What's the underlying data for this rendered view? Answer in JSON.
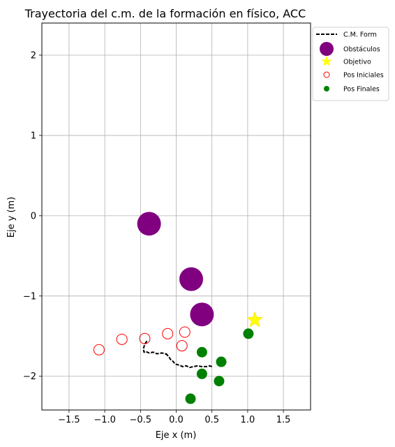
{
  "chart_data": {
    "type": "scatter",
    "title": "Trayectoria del c.m. de la formación en físico, ACC",
    "xlabel": "Eje x (m)",
    "ylabel": "Eje y (m)",
    "xlim": [
      -1.88,
      1.88
    ],
    "ylim": [
      -2.42,
      2.4
    ],
    "xticks": [
      -1.5,
      -1.0,
      -0.5,
      0.0,
      0.5,
      1.0,
      1.5
    ],
    "xtick_labels": [
      "−1.5",
      "−1.0",
      "−0.5",
      "0.0",
      "0.5",
      "1.0",
      "1.5"
    ],
    "yticks": [
      -2,
      -1,
      0,
      1,
      2
    ],
    "ytick_labels": [
      "−2",
      "−1",
      "0",
      "1",
      "2"
    ],
    "grid": true,
    "legend_position": "outside-top-right",
    "series": [
      {
        "name": "C.M. Form",
        "kind": "line",
        "style": "dashed",
        "color": "#000000",
        "x": [
          -0.41,
          -0.44,
          -0.46,
          -0.45,
          -0.43,
          -0.38,
          -0.32,
          -0.27,
          -0.2,
          -0.15,
          -0.12,
          -0.14,
          -0.1,
          -0.08,
          -0.05,
          -0.01,
          0.04,
          0.09,
          0.14,
          0.19,
          0.24,
          0.3,
          0.36,
          0.42,
          0.47,
          0.5
        ],
        "y": [
          -1.56,
          -1.6,
          -1.66,
          -1.7,
          -1.69,
          -1.71,
          -1.7,
          -1.72,
          -1.71,
          -1.72,
          -1.74,
          -1.72,
          -1.76,
          -1.79,
          -1.81,
          -1.85,
          -1.86,
          -1.88,
          -1.87,
          -1.89,
          -1.88,
          -1.87,
          -1.88,
          -1.88,
          -1.87,
          -1.88
        ]
      },
      {
        "name": "Obstáculos",
        "kind": "scatter",
        "color": "#800080",
        "points": [
          [
            -0.38,
            -0.1
          ],
          [
            0.21,
            -0.79
          ],
          [
            0.36,
            -1.23
          ]
        ]
      },
      {
        "name": "Objetivo",
        "kind": "scatter",
        "marker": "star",
        "color": "#ffff00",
        "points": [
          [
            1.1,
            -1.3
          ]
        ]
      },
      {
        "name": "Pos Iniciales",
        "kind": "scatter",
        "marker": "open-circle",
        "color": "#ff0000",
        "points": [
          [
            -1.08,
            -1.67
          ],
          [
            -0.76,
            -1.54
          ],
          [
            -0.44,
            -1.53
          ],
          [
            -0.12,
            -1.47
          ],
          [
            0.12,
            -1.45
          ],
          [
            0.08,
            -1.62
          ]
        ]
      },
      {
        "name": "Pos Finales",
        "kind": "scatter",
        "color": "#008000",
        "points": [
          [
            1.01,
            -1.47
          ],
          [
            0.36,
            -1.7
          ],
          [
            0.63,
            -1.82
          ],
          [
            0.36,
            -1.97
          ],
          [
            0.6,
            -2.06
          ],
          [
            0.2,
            -2.28
          ]
        ]
      }
    ]
  }
}
